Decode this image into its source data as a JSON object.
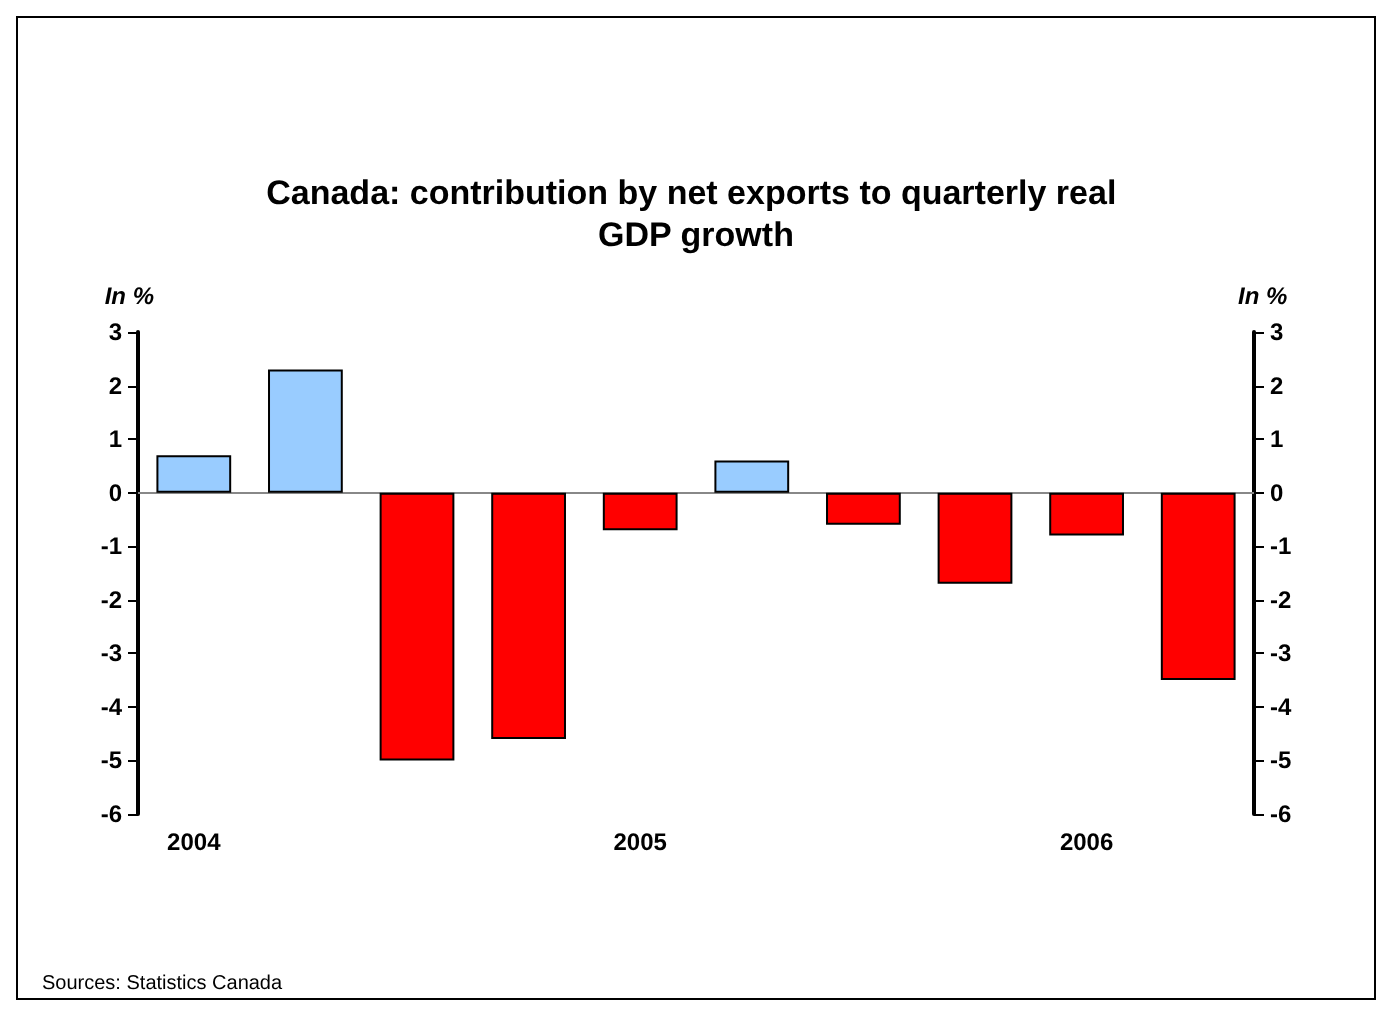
{
  "chart_data": {
    "type": "bar",
    "title": "Canada: contribution by net exports to quarterly real GDP growth",
    "ylabel": "In %",
    "y2label": "In %",
    "categories": [
      "2004",
      null,
      null,
      null,
      "2005",
      null,
      null,
      null,
      "2006",
      null
    ],
    "values": [
      0.7,
      2.3,
      -5.0,
      -4.6,
      -0.7,
      0.6,
      -0.6,
      -1.7,
      -0.8,
      -3.5
    ],
    "colors": [
      "#99ccff",
      "#99ccff",
      "#ff0000",
      "#ff0000",
      "#ff0000",
      "#99ccff",
      "#ff0000",
      "#ff0000",
      "#ff0000",
      "#ff0000"
    ],
    "ylim": [
      -6,
      3
    ],
    "yticks": [
      -6,
      -5,
      -4,
      -3,
      -2,
      -1,
      0,
      1,
      2,
      3
    ],
    "y2lim": [
      -6,
      3
    ],
    "y2ticks": [
      -6,
      -5,
      -4,
      -3,
      -2,
      -1,
      0,
      1,
      2,
      3
    ],
    "annotations": [
      "Sources: Statistics Canada"
    ]
  }
}
